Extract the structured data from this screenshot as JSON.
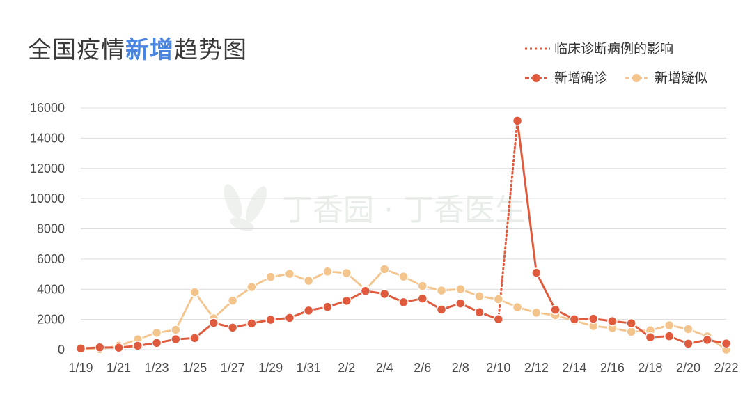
{
  "title": {
    "prefix": "全国疫情",
    "highlight": "新增",
    "suffix": "趋势图"
  },
  "legend": {
    "clinical_label": "临床诊断病例的影响",
    "confirmed_label": "新增确诊",
    "suspected_label": "新增疑似"
  },
  "watermark": "丁香园 · 丁香医生",
  "colors": {
    "confirmed": "#e05a3e",
    "suspected": "#f4c48d",
    "clinical": "#e05a3e",
    "grid": "#dcdcdc",
    "title_highlight": "#4a86e0"
  },
  "chart_data": {
    "type": "line",
    "x": [
      "1/19",
      "1/20",
      "1/21",
      "1/22",
      "1/23",
      "1/24",
      "1/25",
      "1/26",
      "1/27",
      "1/28",
      "1/29",
      "1/30",
      "1/31",
      "2/1",
      "2/2",
      "2/3",
      "2/4",
      "2/5",
      "2/6",
      "2/7",
      "2/8",
      "2/9",
      "2/10",
      "2/11",
      "2/12",
      "2/13",
      "2/14",
      "2/15",
      "2/16",
      "2/17",
      "2/18",
      "2/19",
      "2/20",
      "2/21",
      "2/22"
    ],
    "x_tick_labels": [
      "1/19",
      "1/21",
      "1/23",
      "1/25",
      "1/27",
      "1/29",
      "1/31",
      "2/2",
      "2/4",
      "2/6",
      "2/8",
      "2/10",
      "2/12",
      "2/14",
      "2/16",
      "2/18",
      "2/20",
      "2/22"
    ],
    "y_ticks": [
      0,
      2000,
      4000,
      6000,
      8000,
      10000,
      12000,
      14000,
      16000
    ],
    "ylim": [
      0,
      16000
    ],
    "grid": true,
    "legend_position": "top-right",
    "series": [
      {
        "name": "新增确诊",
        "values": [
          77,
          149,
          131,
          259,
          444,
          688,
          769,
          1771,
          1459,
          1737,
          1981,
          2102,
          2590,
          2829,
          3235,
          3887,
          3694,
          3143,
          3385,
          2652,
          3062,
          2478,
          2015,
          15152,
          5090,
          2641,
          2009,
          2048,
          1886,
          1749,
          820,
          892,
          397,
          648,
          409
        ]
      },
      {
        "name": "新增疑似",
        "values": [
          27,
          26,
          257,
          680,
          1118,
          1309,
          3806,
          2077,
          3248,
          4148,
          4812,
          5019,
          4562,
          5173,
          5072,
          3971,
          5328,
          4833,
          4214,
          3916,
          4008,
          3536,
          3342,
          2807,
          2450,
          2277,
          1918,
          1563,
          1432,
          1185,
          1277,
          1614,
          1361,
          882,
          0
        ]
      }
    ],
    "clinical_series": {
      "name": "临床诊断病例的影响",
      "from_index": 22,
      "to_index": 23
    }
  }
}
